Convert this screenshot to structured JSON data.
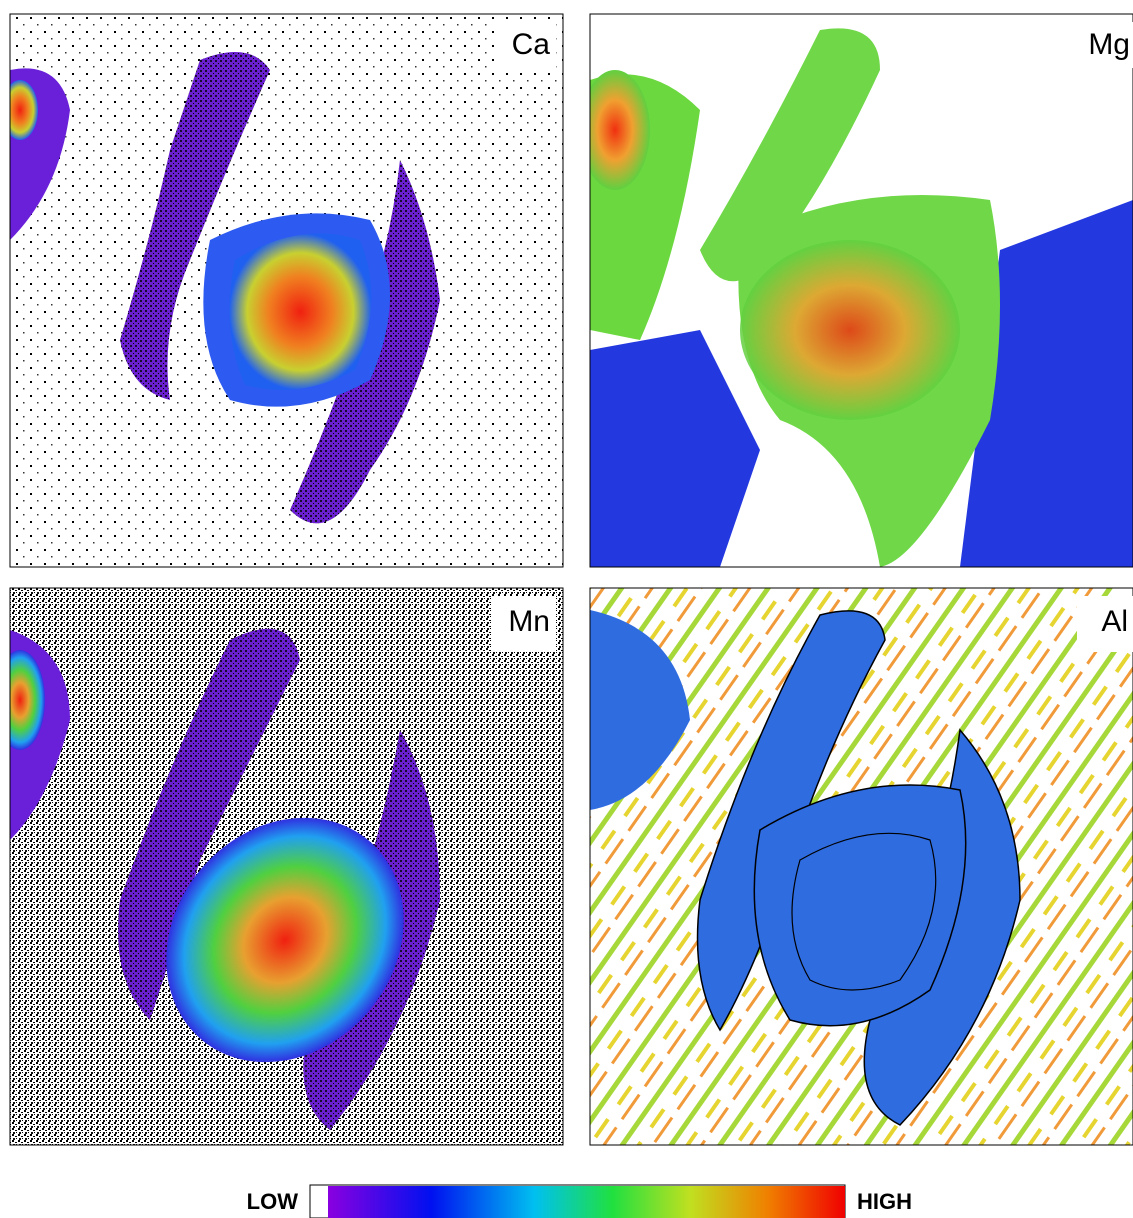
{
  "panels": [
    {
      "label": "Ca"
    },
    {
      "label": "Mg"
    },
    {
      "label": "Mn"
    },
    {
      "label": "Al"
    }
  ],
  "colorbar": {
    "low": "LOW",
    "high": "HIGH"
  }
}
